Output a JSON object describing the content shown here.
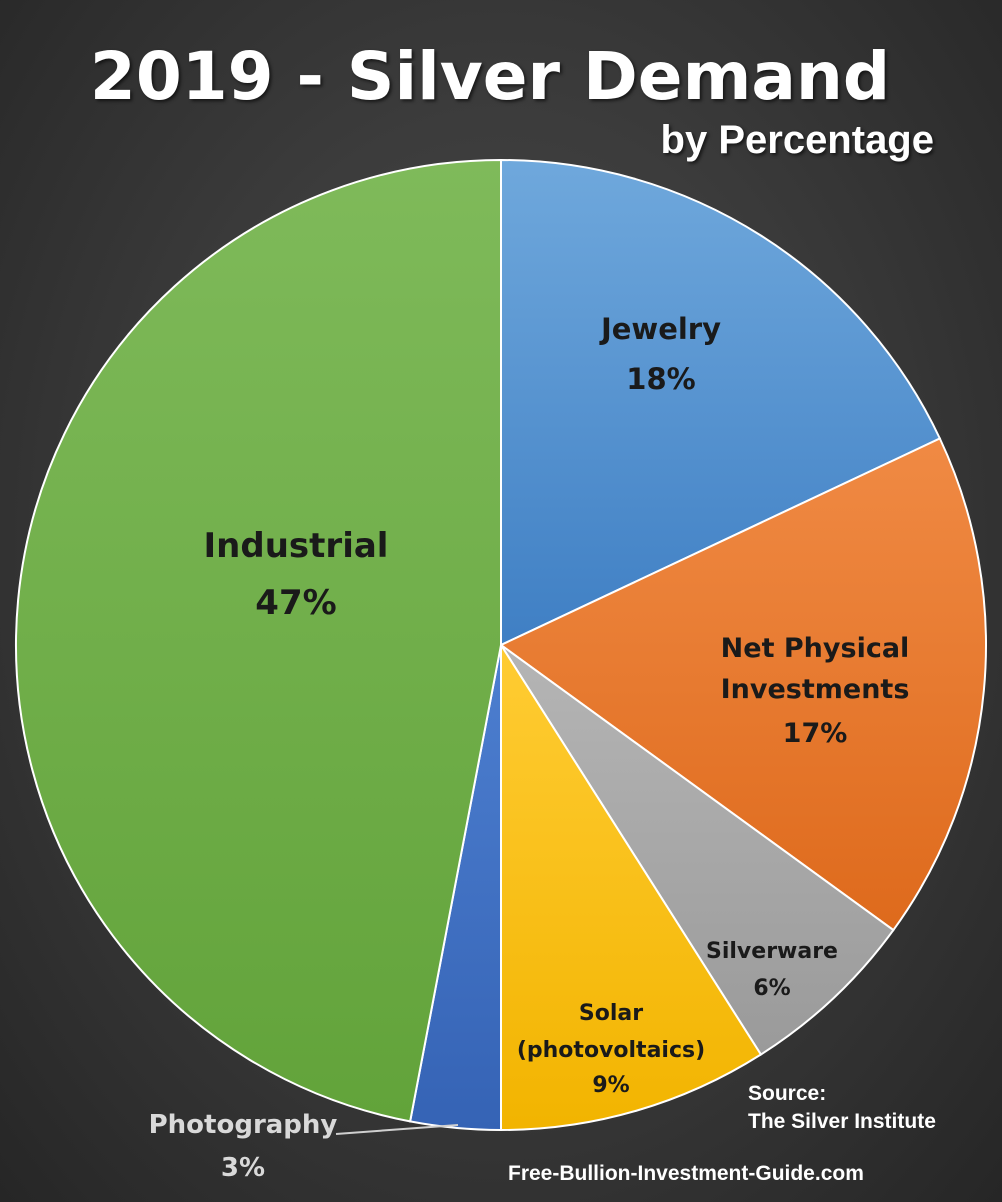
{
  "chart_data": {
    "type": "pie",
    "title": "2019 - Silver Demand",
    "subtitle": "by Percentage",
    "slices": [
      {
        "label": "Jewelry",
        "value": 18,
        "value_label": "18%",
        "color": "#5b9bd5"
      },
      {
        "label": "Net Physical Investments",
        "value": 17,
        "value_label": "17%",
        "color": "#ed7d31"
      },
      {
        "label": "Silverware",
        "value": 6,
        "value_label": "6%",
        "color": "#a5a5a5"
      },
      {
        "label": "Solar (photovoltaics)",
        "value": 9,
        "value_label": "9%",
        "color": "#ffc000"
      },
      {
        "label": "Photography",
        "value": 3,
        "value_label": "3%",
        "color": "#4472c4"
      },
      {
        "label": "Industrial",
        "value": 47,
        "value_label": "47%",
        "color": "#70ad47"
      }
    ],
    "legend": "none",
    "data_labels": "on slices"
  },
  "source_note": {
    "line1": "Source:",
    "line2": "The Silver Institute"
  },
  "website": "Free-Bullion-Investment-Guide.com"
}
